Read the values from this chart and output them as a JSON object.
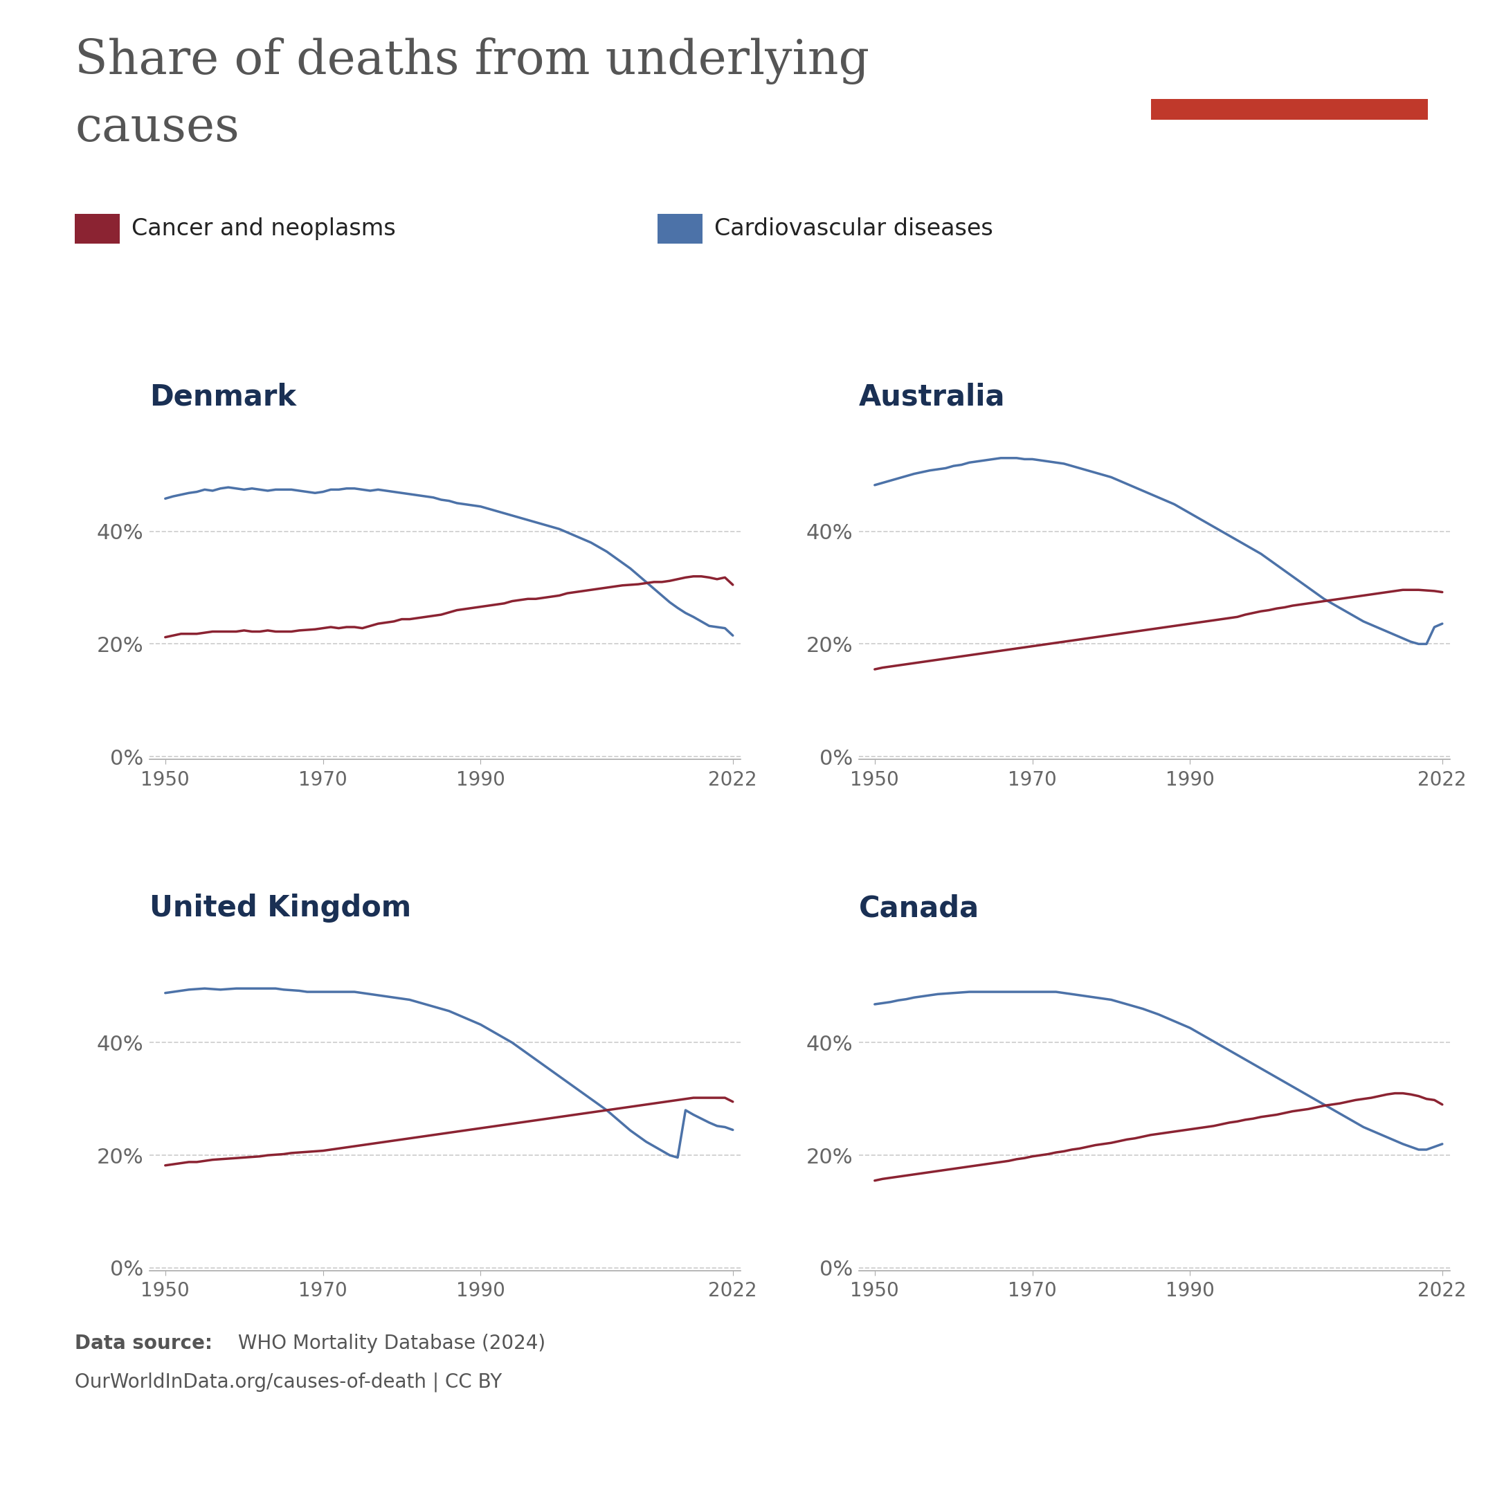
{
  "title_line1": "Share of deaths from underlying",
  "title_line2": "causes",
  "cancer_color": "#8B2332",
  "cardio_color": "#4C72A8",
  "background_color": "#ffffff",
  "title_color": "#555555",
  "country_title_color": "#1a3054",
  "tick_color": "#888888",
  "countries": [
    "Denmark",
    "Australia",
    "United Kingdom",
    "Canada"
  ],
  "legend_cancer": "Cancer and neoplasms",
  "legend_cardio": "Cardiovascular diseases",
  "owid_box_color": "#1a2e50",
  "owid_red": "#c0392b",
  "footer_bold": "Data source:",
  "footer_normal": " WHO Mortality Database (2024)",
  "footer_line2": "OurWorldInData.org/causes-of-death | CC BY",
  "denmark_years": [
    1950,
    1951,
    1952,
    1953,
    1954,
    1955,
    1956,
    1957,
    1958,
    1959,
    1960,
    1961,
    1962,
    1963,
    1964,
    1965,
    1966,
    1967,
    1968,
    1969,
    1970,
    1971,
    1972,
    1973,
    1974,
    1975,
    1976,
    1977,
    1978,
    1979,
    1980,
    1981,
    1982,
    1983,
    1984,
    1985,
    1986,
    1987,
    1988,
    1989,
    1990,
    1991,
    1992,
    1993,
    1994,
    1995,
    1996,
    1997,
    1998,
    1999,
    2000,
    2001,
    2002,
    2003,
    2004,
    2005,
    2006,
    2007,
    2008,
    2009,
    2010,
    2011,
    2012,
    2013,
    2014,
    2015,
    2016,
    2017,
    2018,
    2019,
    2020,
    2021,
    2022
  ],
  "denmark_cancer": [
    0.212,
    0.215,
    0.218,
    0.218,
    0.218,
    0.22,
    0.222,
    0.222,
    0.222,
    0.222,
    0.224,
    0.222,
    0.222,
    0.224,
    0.222,
    0.222,
    0.222,
    0.224,
    0.225,
    0.226,
    0.228,
    0.23,
    0.228,
    0.23,
    0.23,
    0.228,
    0.232,
    0.236,
    0.238,
    0.24,
    0.244,
    0.244,
    0.246,
    0.248,
    0.25,
    0.252,
    0.256,
    0.26,
    0.262,
    0.264,
    0.266,
    0.268,
    0.27,
    0.272,
    0.276,
    0.278,
    0.28,
    0.28,
    0.282,
    0.284,
    0.286,
    0.29,
    0.292,
    0.294,
    0.296,
    0.298,
    0.3,
    0.302,
    0.304,
    0.305,
    0.306,
    0.308,
    0.31,
    0.31,
    0.312,
    0.315,
    0.318,
    0.32,
    0.32,
    0.318,
    0.315,
    0.318,
    0.305
  ],
  "denmark_cardio": [
    0.458,
    0.462,
    0.465,
    0.468,
    0.47,
    0.474,
    0.472,
    0.476,
    0.478,
    0.476,
    0.474,
    0.476,
    0.474,
    0.472,
    0.474,
    0.474,
    0.474,
    0.472,
    0.47,
    0.468,
    0.47,
    0.474,
    0.474,
    0.476,
    0.476,
    0.474,
    0.472,
    0.474,
    0.472,
    0.47,
    0.468,
    0.466,
    0.464,
    0.462,
    0.46,
    0.456,
    0.454,
    0.45,
    0.448,
    0.446,
    0.444,
    0.44,
    0.436,
    0.432,
    0.428,
    0.424,
    0.42,
    0.416,
    0.412,
    0.408,
    0.404,
    0.398,
    0.392,
    0.386,
    0.38,
    0.372,
    0.364,
    0.354,
    0.344,
    0.334,
    0.322,
    0.31,
    0.298,
    0.286,
    0.274,
    0.264,
    0.255,
    0.248,
    0.24,
    0.232,
    0.23,
    0.228,
    0.215
  ],
  "australia_years": [
    1950,
    1951,
    1952,
    1953,
    1954,
    1955,
    1956,
    1957,
    1958,
    1959,
    1960,
    1961,
    1962,
    1963,
    1964,
    1965,
    1966,
    1967,
    1968,
    1969,
    1970,
    1971,
    1972,
    1973,
    1974,
    1975,
    1976,
    1977,
    1978,
    1979,
    1980,
    1981,
    1982,
    1983,
    1984,
    1985,
    1986,
    1987,
    1988,
    1989,
    1990,
    1991,
    1992,
    1993,
    1994,
    1995,
    1996,
    1997,
    1998,
    1999,
    2000,
    2001,
    2002,
    2003,
    2004,
    2005,
    2006,
    2007,
    2008,
    2009,
    2010,
    2011,
    2012,
    2013,
    2014,
    2015,
    2016,
    2017,
    2018,
    2019,
    2020,
    2021,
    2022
  ],
  "australia_cancer": [
    0.155,
    0.158,
    0.16,
    0.162,
    0.164,
    0.166,
    0.168,
    0.17,
    0.172,
    0.174,
    0.176,
    0.178,
    0.18,
    0.182,
    0.184,
    0.186,
    0.188,
    0.19,
    0.192,
    0.194,
    0.196,
    0.198,
    0.2,
    0.202,
    0.204,
    0.206,
    0.208,
    0.21,
    0.212,
    0.214,
    0.216,
    0.218,
    0.22,
    0.222,
    0.224,
    0.226,
    0.228,
    0.23,
    0.232,
    0.234,
    0.236,
    0.238,
    0.24,
    0.242,
    0.244,
    0.246,
    0.248,
    0.252,
    0.255,
    0.258,
    0.26,
    0.263,
    0.265,
    0.268,
    0.27,
    0.272,
    0.274,
    0.276,
    0.278,
    0.28,
    0.282,
    0.284,
    0.286,
    0.288,
    0.29,
    0.292,
    0.294,
    0.296,
    0.296,
    0.296,
    0.295,
    0.294,
    0.292
  ],
  "australia_cardio": [
    0.482,
    0.486,
    0.49,
    0.494,
    0.498,
    0.502,
    0.505,
    0.508,
    0.51,
    0.512,
    0.516,
    0.518,
    0.522,
    0.524,
    0.526,
    0.528,
    0.53,
    0.53,
    0.53,
    0.528,
    0.528,
    0.526,
    0.524,
    0.522,
    0.52,
    0.516,
    0.512,
    0.508,
    0.504,
    0.5,
    0.496,
    0.49,
    0.484,
    0.478,
    0.472,
    0.466,
    0.46,
    0.454,
    0.448,
    0.44,
    0.432,
    0.424,
    0.416,
    0.408,
    0.4,
    0.392,
    0.384,
    0.376,
    0.368,
    0.36,
    0.35,
    0.34,
    0.33,
    0.32,
    0.31,
    0.3,
    0.29,
    0.28,
    0.272,
    0.264,
    0.256,
    0.248,
    0.24,
    0.234,
    0.228,
    0.222,
    0.216,
    0.21,
    0.204,
    0.2,
    0.2,
    0.23,
    0.236
  ],
  "uk_years": [
    1950,
    1951,
    1952,
    1953,
    1954,
    1955,
    1956,
    1957,
    1958,
    1959,
    1960,
    1961,
    1962,
    1963,
    1964,
    1965,
    1966,
    1967,
    1968,
    1969,
    1970,
    1971,
    1972,
    1973,
    1974,
    1975,
    1976,
    1977,
    1978,
    1979,
    1980,
    1981,
    1982,
    1983,
    1984,
    1985,
    1986,
    1987,
    1988,
    1989,
    1990,
    1991,
    1992,
    1993,
    1994,
    1995,
    1996,
    1997,
    1998,
    1999,
    2000,
    2001,
    2002,
    2003,
    2004,
    2005,
    2006,
    2007,
    2008,
    2009,
    2010,
    2011,
    2012,
    2013,
    2014,
    2015,
    2016,
    2017,
    2018,
    2019,
    2020,
    2021,
    2022
  ],
  "uk_cancer": [
    0.182,
    0.184,
    0.186,
    0.188,
    0.188,
    0.19,
    0.192,
    0.193,
    0.194,
    0.195,
    0.196,
    0.197,
    0.198,
    0.2,
    0.201,
    0.202,
    0.204,
    0.205,
    0.206,
    0.207,
    0.208,
    0.21,
    0.212,
    0.214,
    0.216,
    0.218,
    0.22,
    0.222,
    0.224,
    0.226,
    0.228,
    0.23,
    0.232,
    0.234,
    0.236,
    0.238,
    0.24,
    0.242,
    0.244,
    0.246,
    0.248,
    0.25,
    0.252,
    0.254,
    0.256,
    0.258,
    0.26,
    0.262,
    0.264,
    0.266,
    0.268,
    0.27,
    0.272,
    0.274,
    0.276,
    0.278,
    0.28,
    0.282,
    0.284,
    0.286,
    0.288,
    0.29,
    0.292,
    0.294,
    0.296,
    0.298,
    0.3,
    0.302,
    0.302,
    0.302,
    0.302,
    0.302,
    0.295
  ],
  "uk_cardio": [
    0.488,
    0.49,
    0.492,
    0.494,
    0.495,
    0.496,
    0.495,
    0.494,
    0.495,
    0.496,
    0.496,
    0.496,
    0.496,
    0.496,
    0.496,
    0.494,
    0.493,
    0.492,
    0.49,
    0.49,
    0.49,
    0.49,
    0.49,
    0.49,
    0.49,
    0.488,
    0.486,
    0.484,
    0.482,
    0.48,
    0.478,
    0.476,
    0.472,
    0.468,
    0.464,
    0.46,
    0.456,
    0.45,
    0.444,
    0.438,
    0.432,
    0.424,
    0.416,
    0.408,
    0.4,
    0.39,
    0.38,
    0.37,
    0.36,
    0.35,
    0.34,
    0.33,
    0.32,
    0.31,
    0.3,
    0.29,
    0.28,
    0.268,
    0.256,
    0.244,
    0.234,
    0.224,
    0.216,
    0.208,
    0.2,
    0.196,
    0.28,
    0.272,
    0.265,
    0.258,
    0.252,
    0.25,
    0.245
  ],
  "canada_years": [
    1950,
    1951,
    1952,
    1953,
    1954,
    1955,
    1956,
    1957,
    1958,
    1959,
    1960,
    1961,
    1962,
    1963,
    1964,
    1965,
    1966,
    1967,
    1968,
    1969,
    1970,
    1971,
    1972,
    1973,
    1974,
    1975,
    1976,
    1977,
    1978,
    1979,
    1980,
    1981,
    1982,
    1983,
    1984,
    1985,
    1986,
    1987,
    1988,
    1989,
    1990,
    1991,
    1992,
    1993,
    1994,
    1995,
    1996,
    1997,
    1998,
    1999,
    2000,
    2001,
    2002,
    2003,
    2004,
    2005,
    2006,
    2007,
    2008,
    2009,
    2010,
    2011,
    2012,
    2013,
    2014,
    2015,
    2016,
    2017,
    2018,
    2019,
    2020,
    2021,
    2022
  ],
  "canada_cancer": [
    0.155,
    0.158,
    0.16,
    0.162,
    0.164,
    0.166,
    0.168,
    0.17,
    0.172,
    0.174,
    0.176,
    0.178,
    0.18,
    0.182,
    0.184,
    0.186,
    0.188,
    0.19,
    0.193,
    0.195,
    0.198,
    0.2,
    0.202,
    0.205,
    0.207,
    0.21,
    0.212,
    0.215,
    0.218,
    0.22,
    0.222,
    0.225,
    0.228,
    0.23,
    0.233,
    0.236,
    0.238,
    0.24,
    0.242,
    0.244,
    0.246,
    0.248,
    0.25,
    0.252,
    0.255,
    0.258,
    0.26,
    0.263,
    0.265,
    0.268,
    0.27,
    0.272,
    0.275,
    0.278,
    0.28,
    0.282,
    0.285,
    0.288,
    0.29,
    0.292,
    0.295,
    0.298,
    0.3,
    0.302,
    0.305,
    0.308,
    0.31,
    0.31,
    0.308,
    0.305,
    0.3,
    0.298,
    0.29
  ],
  "canada_cardio": [
    0.468,
    0.47,
    0.472,
    0.475,
    0.477,
    0.48,
    0.482,
    0.484,
    0.486,
    0.487,
    0.488,
    0.489,
    0.49,
    0.49,
    0.49,
    0.49,
    0.49,
    0.49,
    0.49,
    0.49,
    0.49,
    0.49,
    0.49,
    0.49,
    0.488,
    0.486,
    0.484,
    0.482,
    0.48,
    0.478,
    0.476,
    0.472,
    0.468,
    0.464,
    0.46,
    0.455,
    0.45,
    0.444,
    0.438,
    0.432,
    0.426,
    0.418,
    0.41,
    0.402,
    0.394,
    0.386,
    0.378,
    0.37,
    0.362,
    0.354,
    0.346,
    0.338,
    0.33,
    0.322,
    0.314,
    0.306,
    0.298,
    0.29,
    0.282,
    0.274,
    0.266,
    0.258,
    0.25,
    0.244,
    0.238,
    0.232,
    0.226,
    0.22,
    0.215,
    0.21,
    0.21,
    0.215,
    0.22
  ]
}
